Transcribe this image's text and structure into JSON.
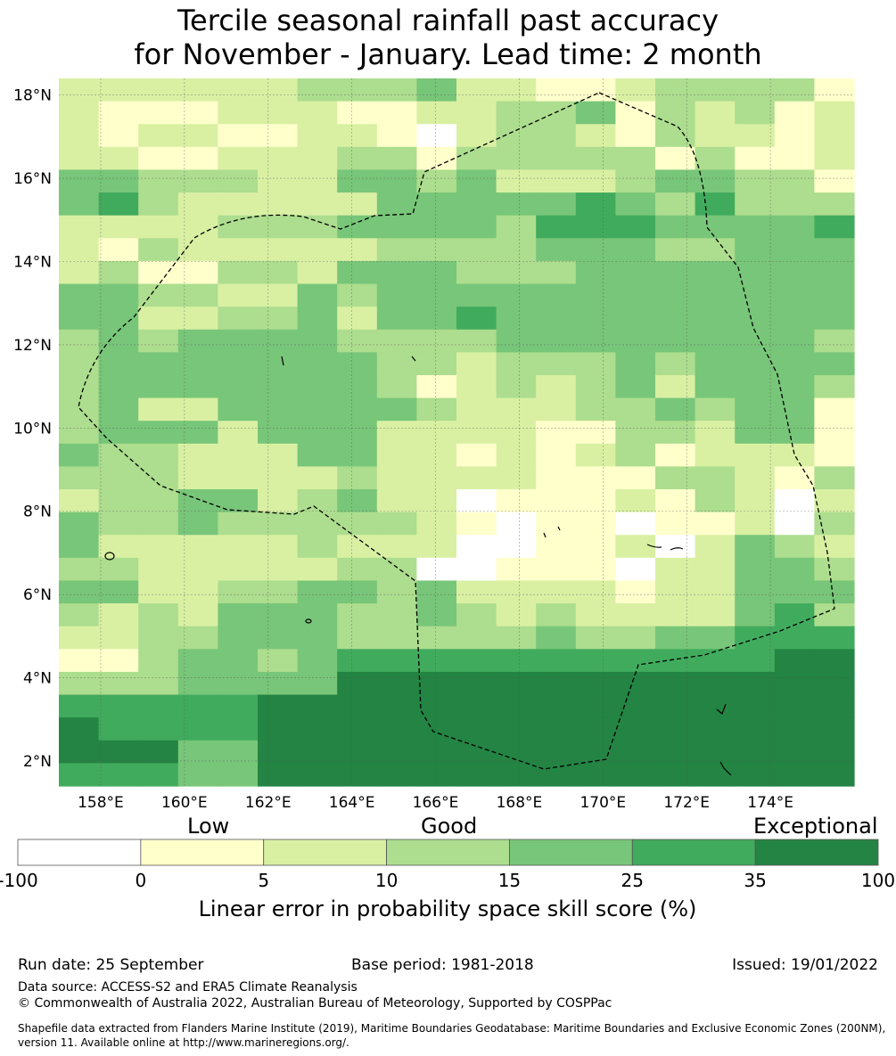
{
  "title": {
    "line1": "Tercile seasonal rainfall past accuracy",
    "line2": "for November - January. Lead time: 2 month"
  },
  "map": {
    "lat_labels": [
      "18°N",
      "16°N",
      "14°N",
      "12°N",
      "10°N",
      "8°N",
      "6°N",
      "4°N",
      "2°N"
    ],
    "lon_labels": [
      "158°E",
      "160°E",
      "162°E",
      "164°E",
      "166°E",
      "168°E",
      "170°E",
      "172°E",
      "174°E"
    ],
    "lat_range": [
      1.4,
      18.4
    ],
    "lon_range": [
      157,
      176
    ],
    "color_classes": [
      "#ffffff",
      "#ffffcc",
      "#d9f0a3",
      "#addd8e",
      "#78c679",
      "#41ab5d",
      "#238443"
    ],
    "grid_rows": [
      "22222233342211233331",
      "21112221122334132312",
      "21221122102332132212",
      "22112223313333313112",
      "44333224434222344331",
      "45322222444445435333",
      "22223334444355544445",
      "21322222333344433444",
      "23113324443334444444",
      "44332243444444444444",
      "44223342445444444444",
      "34344443333444444443",
      "34444444332333434444",
      "34444444312323424443",
      "34224444432223343441",
      "34442444222211332441",
      "43322244221212312221",
      "33322223222211133213",
      "23344234220111213202",
      "43343333321011011203",
      "42222232220011202432",
      "33222223300111022443",
      "44223344342222122444",
      "32324443343232222453",
      "22334443333343344555",
      "11344345555555555566",
      "33344446666666666666",
      "55555666666666666666",
      "65555666666666666666",
      "66644666666666666666",
      "55544666666666666666"
    ]
  },
  "legend": {
    "low": "Low",
    "good": "Good",
    "exceptional": "Exceptional",
    "thresholds": [
      "-100",
      "0",
      "5",
      "10",
      "15",
      "25",
      "35",
      "100"
    ],
    "xlabel": "Linear error in probability space skill score (%)"
  },
  "footer": {
    "run_date": "Run date: 25 September",
    "base_period": "Base period: 1981-2018",
    "issued": "Issued: 19/01/2022",
    "data_source": "Data source: ACCESS-S2 and ERA5 Climate Reanalysis",
    "copyright": "© Commonwealth of Australia 2022, Australian Bureau of Meteorology, Supported by COSPPac",
    "shapefile1": "Shapefile data extracted from Flanders Marine Institute (2019), Maritime Boundaries Geodatabase: Maritime Boundaries and Exclusive Economic Zones (200NM),",
    "shapefile2": "version 11. Available online at http://www.marineregions.org/."
  }
}
